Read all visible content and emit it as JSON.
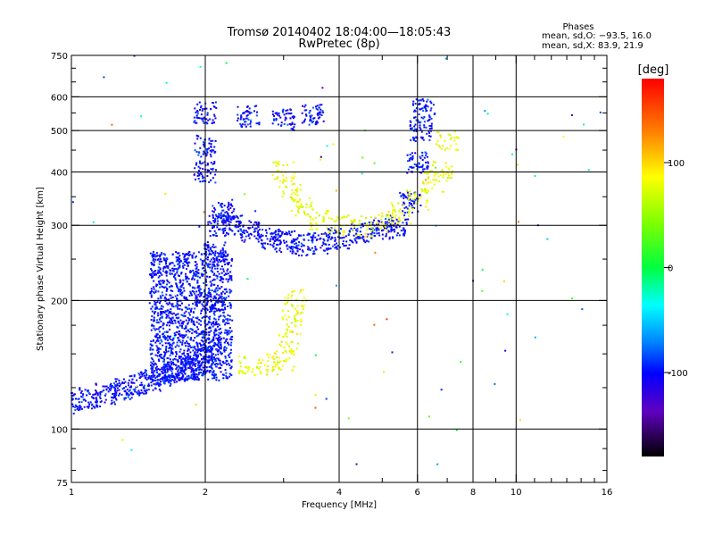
{
  "chart_data": {
    "type": "scatter",
    "title": "Tromsø 20140402 18:04:00—18:05:43",
    "subtitle": "RwPretec (8p)",
    "xlabel": "Frequency [MHz]",
    "ylabel": "Stationary phase Virtual Height [km]",
    "xscale": "log",
    "yscale": "log",
    "xlim": [
      1,
      16
    ],
    "ylim": [
      75,
      750
    ],
    "x_ticks": [
      1,
      2,
      4,
      6,
      8,
      10,
      16
    ],
    "x_tick_labels": [
      "1",
      "2",
      "4",
      "6",
      "8",
      "10",
      "16"
    ],
    "x_gridlines": [
      2,
      4,
      6,
      8,
      10
    ],
    "y_ticks": [
      75,
      100,
      200,
      300,
      400,
      500,
      600,
      750
    ],
    "y_tick_labels": [
      "75",
      "100",
      "200",
      "300",
      "400",
      "500",
      "600",
      "750"
    ],
    "y_gridlines": [
      100,
      200,
      300,
      400,
      500,
      600
    ],
    "grid": true,
    "legend": {
      "title": "Phases",
      "lines": [
        "mean, sd,O: −93.5, 16.0",
        "mean, sd,X:  83.9, 21.9"
      ],
      "placement": "top-right"
    },
    "colorbar": {
      "label": "[deg]",
      "range": [
        -180,
        180
      ],
      "ticks": [
        100,
        0,
        -100
      ],
      "tick_labels": [
        "100",
        "0",
        "-100"
      ],
      "colormap": "rainbow"
    },
    "series": [
      {
        "role": "O-mode ordinary echo traces",
        "phase_deg": -100,
        "points": [
          [
            1.0,
            115
          ],
          [
            1.1,
            118
          ],
          [
            1.2,
            121
          ],
          [
            1.3,
            124
          ],
          [
            1.4,
            127
          ],
          [
            1.5,
            130
          ],
          [
            1.6,
            133
          ],
          [
            1.7,
            136
          ],
          [
            1.8,
            138
          ],
          [
            1.9,
            141
          ],
          [
            2.0,
            145
          ],
          [
            2.05,
            160
          ],
          [
            2.1,
            200
          ],
          [
            2.1,
            260
          ],
          [
            2.15,
            300
          ],
          [
            2.2,
            325
          ],
          [
            2.3,
            300
          ],
          [
            2.5,
            290
          ],
          [
            2.8,
            280
          ],
          [
            3.0,
            275
          ],
          [
            3.3,
            270
          ],
          [
            3.6,
            272
          ],
          [
            4.0,
            280
          ],
          [
            4.5,
            288
          ],
          [
            5.0,
            295
          ],
          [
            5.4,
            300
          ],
          [
            5.8,
            340
          ],
          [
            6.0,
            420
          ],
          [
            6.1,
            500
          ],
          [
            6.2,
            560
          ],
          [
            2.0,
            550
          ],
          [
            2.5,
            540
          ],
          [
            3.0,
            530
          ],
          [
            3.5,
            545
          ],
          [
            2.0,
            400
          ],
          [
            2.0,
            460
          ]
        ]
      },
      {
        "role": "X-mode extraordinary echo traces",
        "phase_deg": 80,
        "points": [
          [
            2.5,
            140
          ],
          [
            2.8,
            142
          ],
          [
            3.0,
            145
          ],
          [
            3.1,
            160
          ],
          [
            3.15,
            180
          ],
          [
            3.2,
            200
          ],
          [
            3.0,
            400
          ],
          [
            3.1,
            360
          ],
          [
            3.3,
            330
          ],
          [
            3.6,
            310
          ],
          [
            4.0,
            300
          ],
          [
            4.5,
            298
          ],
          [
            5.0,
            305
          ],
          [
            5.5,
            320
          ],
          [
            6.0,
            345
          ],
          [
            6.5,
            380
          ],
          [
            6.8,
            400
          ],
          [
            7.0,
            470
          ]
        ]
      }
    ]
  }
}
